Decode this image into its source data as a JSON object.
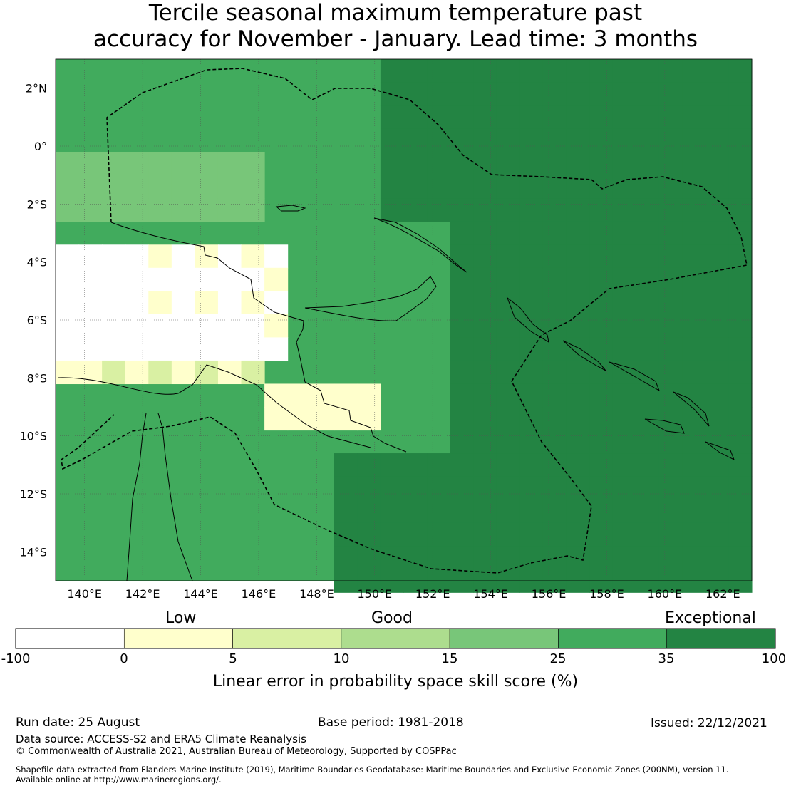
{
  "title_line1": "Tercile seasonal maximum temperature past",
  "title_line2": "accuracy for November - January. Lead time: 3 months",
  "map": {
    "lat_ticks": [
      "2°N",
      "0°",
      "2°S",
      "4°S",
      "6°S",
      "8°S",
      "10°S",
      "12°S",
      "14°S"
    ],
    "lon_ticks": [
      "140°E",
      "142°E",
      "144°E",
      "146°E",
      "148°E",
      "150°E",
      "152°E",
      "154°E",
      "156°E",
      "158°E",
      "160°E",
      "162°E"
    ],
    "lon_range": [
      139,
      163
    ],
    "lat_range": [
      -15,
      3
    ]
  },
  "colorbar": {
    "categories": [
      "Low",
      "Good",
      "Exceptional"
    ],
    "ticks": [
      "-100",
      "0",
      "5",
      "10",
      "15",
      "25",
      "35",
      "100"
    ],
    "colors": [
      "#ffffff",
      "#ffffcc",
      "#d9f0a3",
      "#addd8e",
      "#78c679",
      "#41ab5d",
      "#238443"
    ],
    "label": "Linear error in probability space skill score (%)"
  },
  "footer": {
    "run_date": "Run date: 25 August",
    "base_period": "Base period: 1981-2018",
    "issued": "Issued: 22/12/2021",
    "data_source": "Data source: ACCESS-S2 and ERA5 Climate Reanalysis",
    "copyright": "© Commonwealth of Australia 2021, Australian Bureau of Meteorology, Supported by COSPPac",
    "shapefile_line1": "Shapefile data extracted from Flanders Marine Institute (2019), Maritime Boundaries Geodatabase: Maritime Boundaries and Exclusive Economic Zones (200NM), version 11.",
    "shapefile_line2": "Available online at http://www.marineregions.org/."
  }
}
